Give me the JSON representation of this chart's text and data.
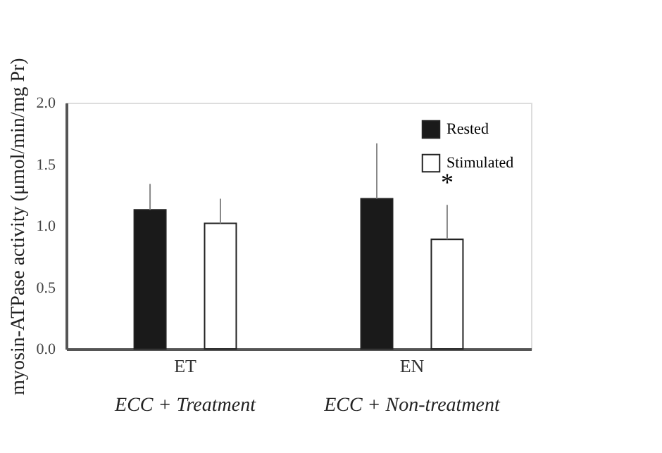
{
  "chart_data": {
    "type": "bar",
    "ylabel": "myosin-ATPase activity (μmol/min/mg Pr)",
    "categories": [
      "ET",
      "EN"
    ],
    "series": [
      {
        "name": "Rested",
        "color": "#1a1a1a",
        "values": [
          1.13,
          1.22
        ],
        "errors": [
          0.21,
          0.45
        ]
      },
      {
        "name": "Stimulated",
        "color": "#ffffff",
        "values": [
          1.02,
          0.89
        ],
        "errors": [
          0.2,
          0.28
        ]
      }
    ],
    "ylim": [
      0,
      2.0
    ],
    "yticks": [
      {
        "value": 0,
        "label": "0.0"
      },
      {
        "value": 0.5,
        "label": "0.5"
      },
      {
        "value": 1.0,
        "label": "1.0"
      },
      {
        "value": 1.5,
        "label": "1.5"
      },
      {
        "value": 2.0,
        "label": "2.0"
      }
    ],
    "annotations": [
      "*",
      "ECC + Treatment",
      "ECC + Non-treatment"
    ],
    "legend": "top right",
    "grid": false
  }
}
